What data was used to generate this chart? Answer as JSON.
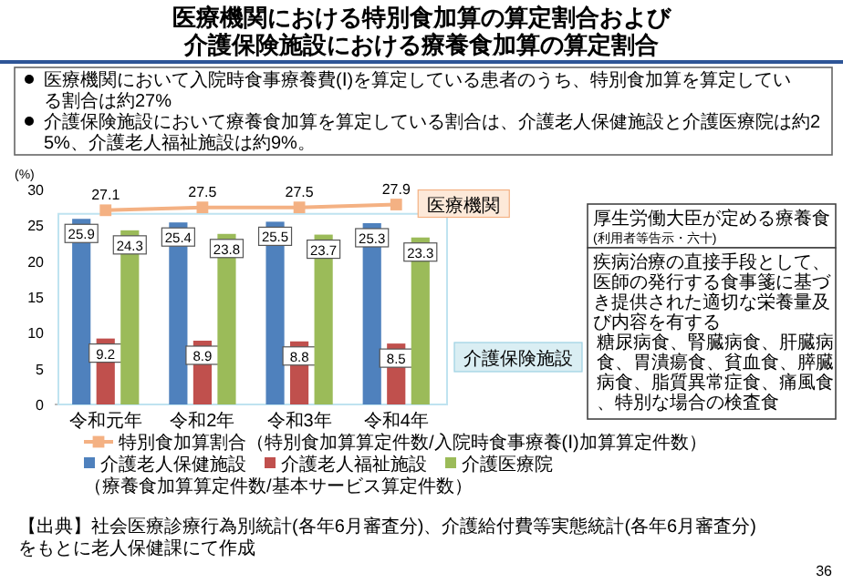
{
  "chart_data": {
    "type": "bar",
    "title": "医療機関における特別食加算の算定割合および",
    "subtitle": "介護保険施設における療養食加算の算定割合",
    "ylabel": "(%)",
    "categories": [
      "令和元年",
      "令和2年",
      "令和3年",
      "令和4年"
    ],
    "series": [
      {
        "name": "特別食加算割合",
        "type": "line",
        "color": "#f4b183",
        "marker": "square",
        "line_style": "solid",
        "values": [
          27.1,
          27.5,
          27.5,
          27.9
        ]
      },
      {
        "name": "介護老人保健施設",
        "color": "#4f81bd",
        "values": [
          25.9,
          25.4,
          25.5,
          25.3
        ]
      },
      {
        "name": "介護老人福祉施設",
        "color": "#c0504d",
        "values": [
          9.2,
          8.9,
          8.8,
          8.5
        ]
      },
      {
        "name": "介護医療院",
        "color": "#9bbb59",
        "values": [
          24.3,
          23.8,
          23.7,
          23.3
        ]
      }
    ],
    "ylim": [
      0,
      30
    ],
    "yticks": [
      0,
      5,
      10,
      15,
      20,
      25,
      30
    ],
    "grid": false,
    "legend": "bottom",
    "data_labels": true,
    "annotations": [
      "医療機関において入院時食事療養費(Ⅰ)を算定している患者のうち、特別食加算を算定している割合は約27%",
      "介護保険施設において療養食加算を算定している割合は、介護老人保健施設と介護医療院は約25%、介護老人福祉施設は約9%。",
      "医療機関",
      "介護保険施設",
      "（特別食加算算定件数/入院時食事療養(Ⅰ)加算算定件数）",
      "（療養食加算算定件数/基本サービス算定件数）",
      "厚生労働大臣が定める療養食",
      "(利用者等告示・六十)",
      "疾病治療の直接手段として、医師の発行する食事箋に基づき提供された適切な栄養量及び内容を有する",
      "糖尿病食、腎臓病食、肝臓病食、胃潰瘍食、貧血食、膵臓病食、脂質異常症食、痛風食、特別な場合の検査食",
      "【出典】社会医療診療行為別統計(各年6月審査分)、介護給付費等実態統計(各年6月審査分)をもとに老人保健課にて作成",
      "36"
    ]
  }
}
